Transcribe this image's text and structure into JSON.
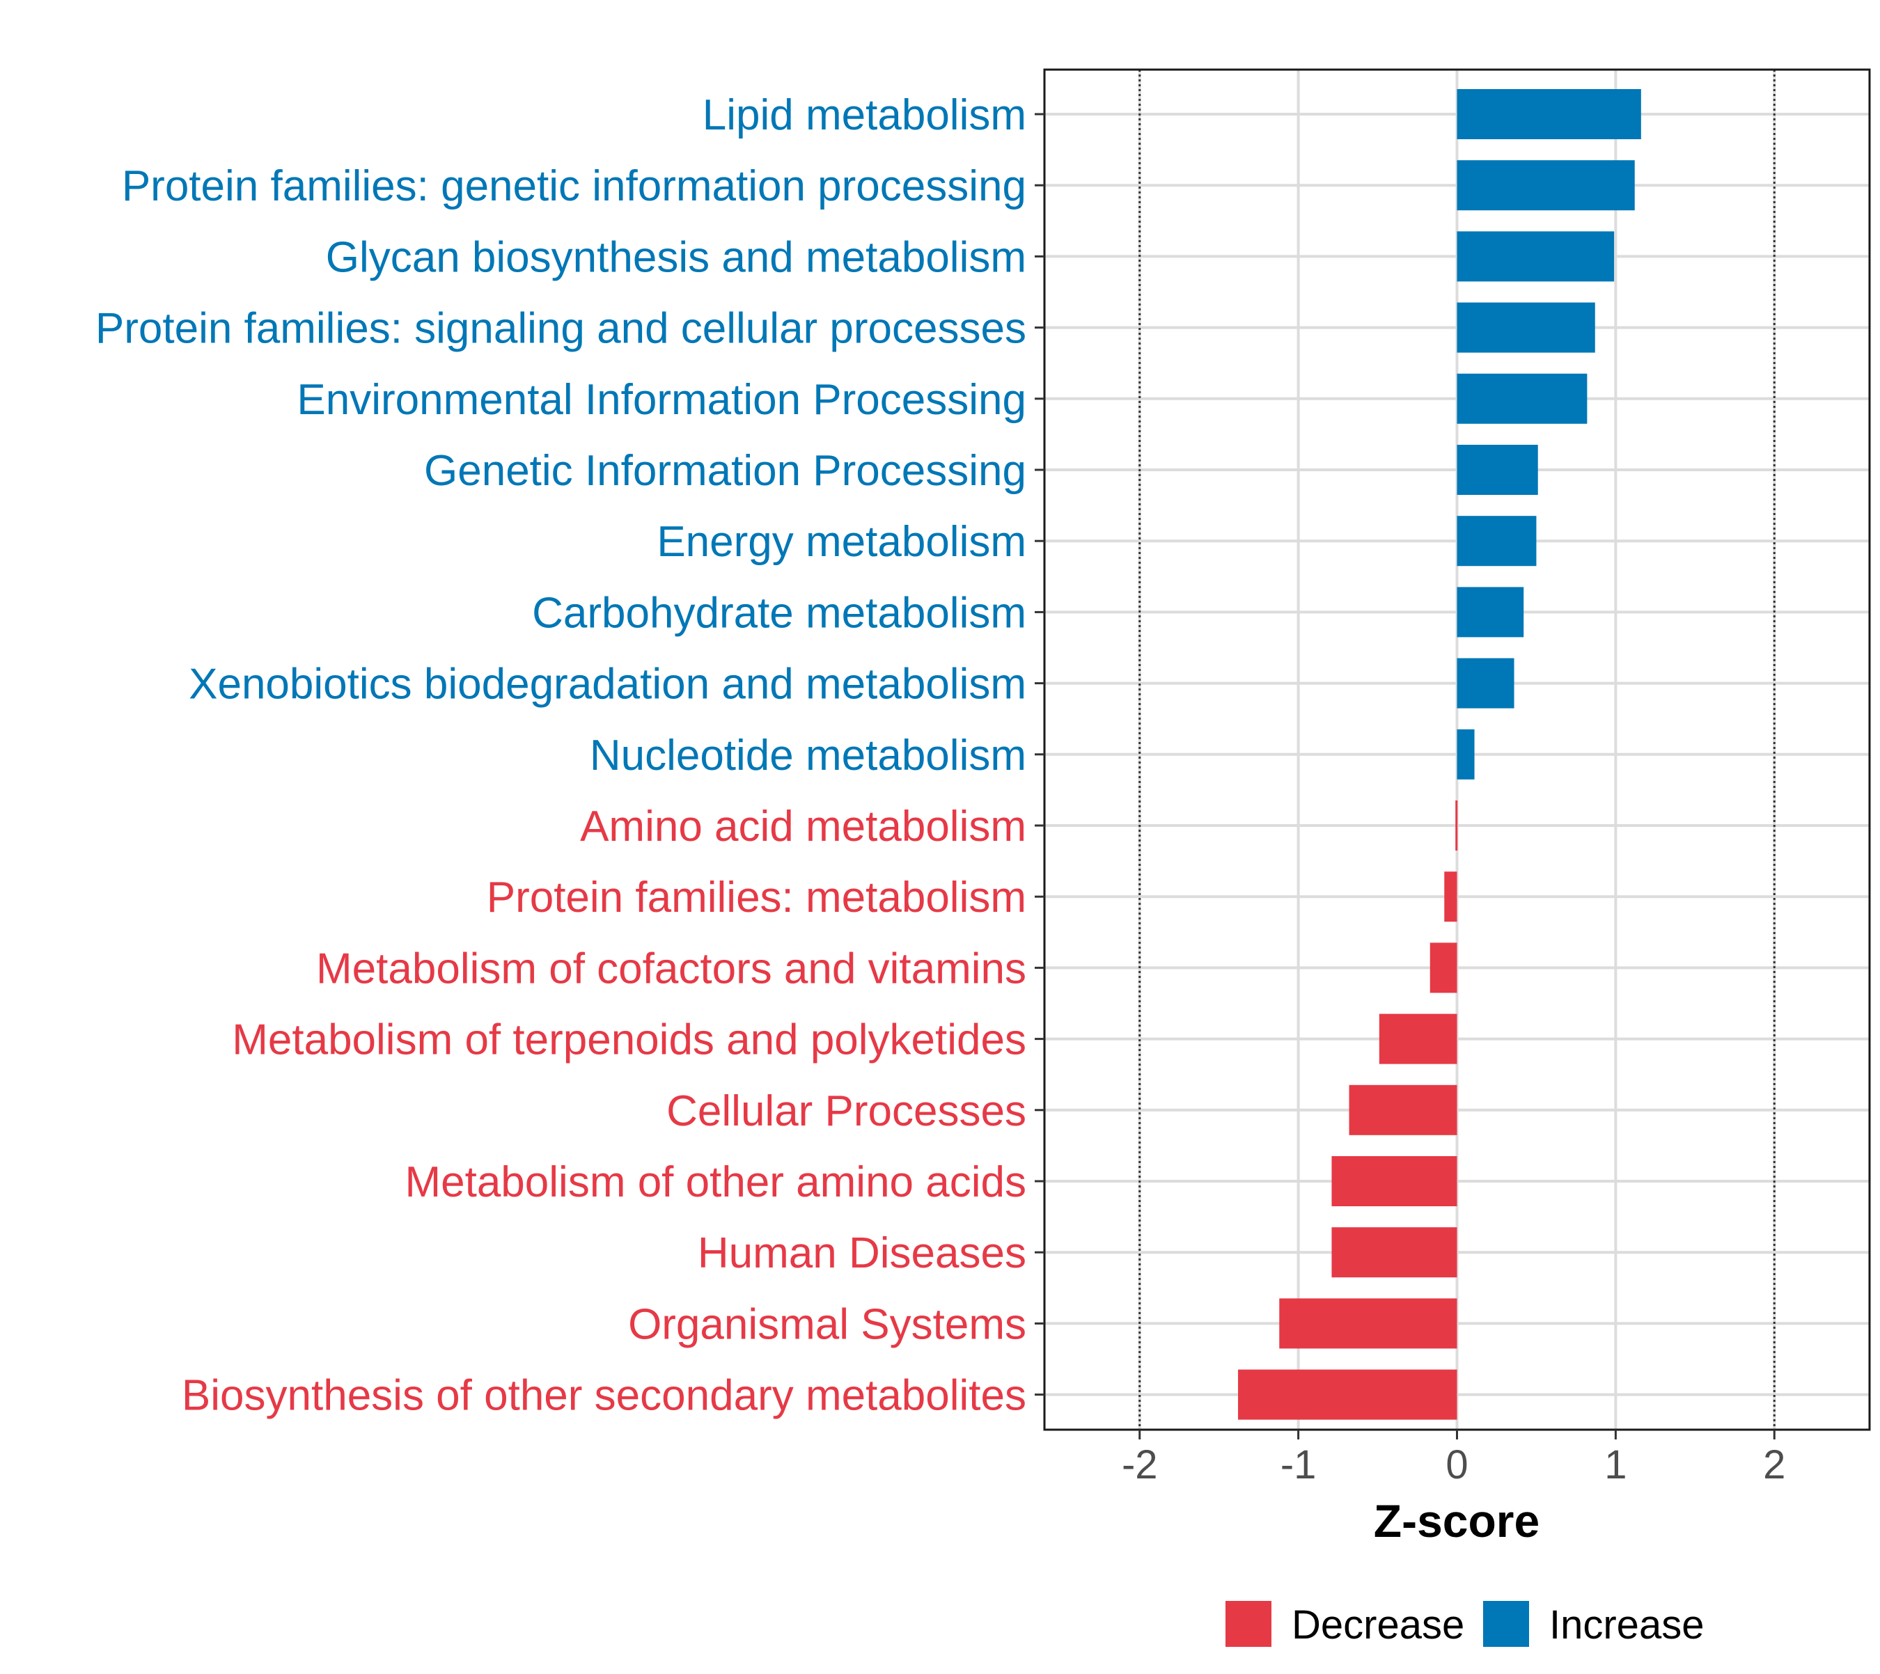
{
  "chart_data": {
    "type": "bar",
    "orientation": "horizontal",
    "xlabel": "Z-score",
    "xlim": [
      -2.6,
      2.6
    ],
    "xticks": [
      -2,
      -1,
      0,
      1,
      2
    ],
    "xtick_labels": [
      "-2",
      "-1",
      "0",
      "1",
      "2"
    ],
    "reference_lines": [
      -2,
      2
    ],
    "grid": true,
    "legend_position": "bottom",
    "colors": {
      "Decrease": "#e63946",
      "Increase": "#0077b6"
    },
    "categories": [
      "Lipid metabolism",
      "Protein families: genetic information processing",
      "Glycan biosynthesis and metabolism",
      "Protein families: signaling and cellular processes",
      "Environmental Information Processing",
      "Genetic Information Processing",
      "Energy metabolism",
      "Carbohydrate metabolism",
      "Xenobiotics biodegradation and metabolism",
      "Nucleotide metabolism",
      "Amino acid metabolism",
      "Protein families: metabolism",
      "Metabolism of cofactors and vitamins",
      "Metabolism of terpenoids and polyketides",
      "Cellular Processes",
      "Metabolism of other amino acids",
      "Human Diseases",
      "Organismal Systems",
      "Biosynthesis of other secondary metabolites"
    ],
    "values": [
      1.16,
      1.12,
      0.99,
      0.87,
      0.82,
      0.51,
      0.5,
      0.42,
      0.36,
      0.11,
      -0.01,
      -0.08,
      -0.17,
      -0.49,
      -0.68,
      -0.79,
      -0.79,
      -1.12,
      -1.38
    ],
    "groups": [
      "Increase",
      "Increase",
      "Increase",
      "Increase",
      "Increase",
      "Increase",
      "Increase",
      "Increase",
      "Increase",
      "Increase",
      "Decrease",
      "Decrease",
      "Decrease",
      "Decrease",
      "Decrease",
      "Decrease",
      "Decrease",
      "Decrease",
      "Decrease"
    ],
    "legend": [
      {
        "label": "Decrease",
        "color": "#e63946"
      },
      {
        "label": "Increase",
        "color": "#0077b6"
      }
    ]
  }
}
